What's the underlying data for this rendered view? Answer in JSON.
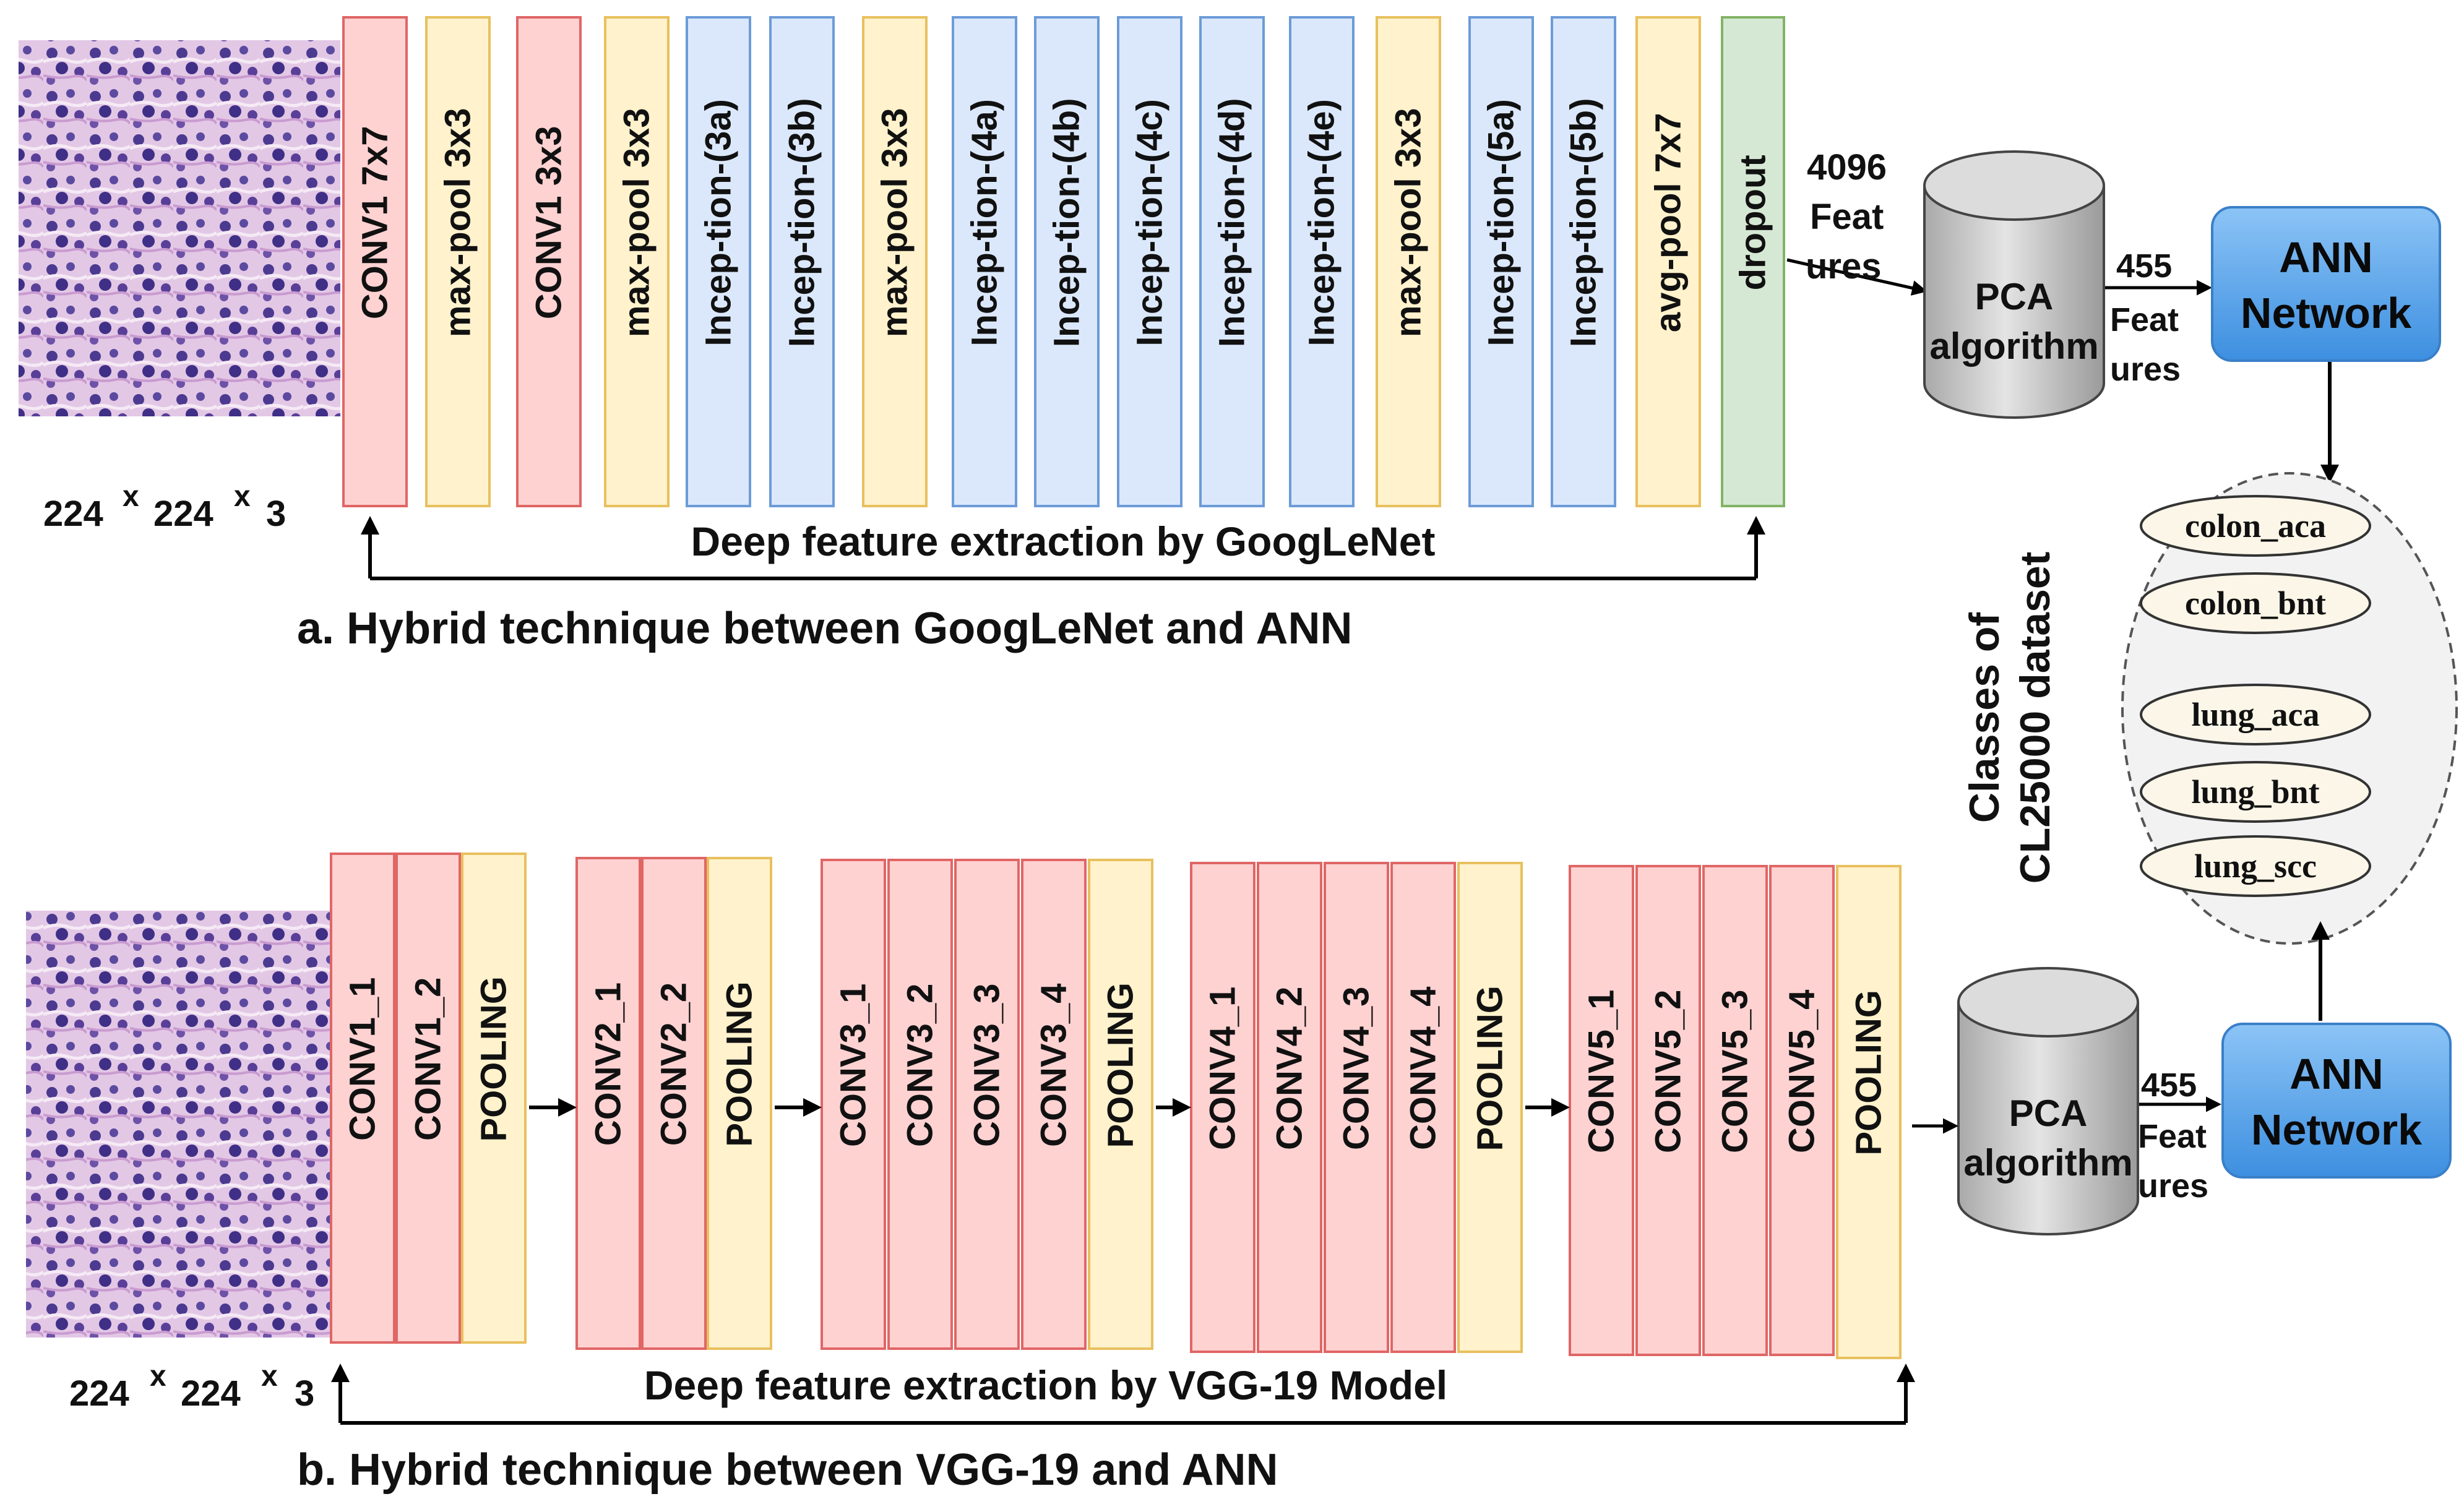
{
  "colors": {
    "conv": "#ffd2d2",
    "conv_stroke": "#e06666",
    "pool": "#fff2cc",
    "pool_stroke": "#e8c05e",
    "inception": "#dbe8fb",
    "inception_stroke": "#6c9bd8",
    "dropout": "#d5e8d4",
    "dropout_stroke": "#82b366",
    "ann": "#5aa5ef",
    "pca": "#cfcfcf",
    "cluster_fill": "#f0f0f0",
    "class_fill": "#fbf6e8",
    "histo_bg": "#e9d4ea",
    "histo_cell": "#4a3a8e"
  },
  "panel_a": {
    "input_size": {
      "n1": "224",
      "x1": "x",
      "n2": "224",
      "x2": "x",
      "n3": "3"
    },
    "layers": [
      {
        "label": "CONV1 7x7",
        "kind": "conv"
      },
      {
        "label": "max-pool 3x3",
        "kind": "pool"
      },
      {
        "label": "CONV1 3x3",
        "kind": "conv"
      },
      {
        "label": "max-pool 3x3",
        "kind": "pool"
      },
      {
        "label": "Incep-tion-(3a)",
        "kind": "inception"
      },
      {
        "label": "Incep-tion-(3b)",
        "kind": "inception"
      },
      {
        "label": "max-pool 3x3",
        "kind": "pool"
      },
      {
        "label": "Incep-tion-(4a)",
        "kind": "inception"
      },
      {
        "label": "Incep-tion-(4b)",
        "kind": "inception"
      },
      {
        "label": "Incep-tion-(4c)",
        "kind": "inception"
      },
      {
        "label": "Incep-tion-(4d)",
        "kind": "inception"
      },
      {
        "label": "Incep-tion-(4e)",
        "kind": "inception"
      },
      {
        "label": "max-pool 3x3",
        "kind": "pool"
      },
      {
        "label": "Incep-tion-(5a)",
        "kind": "inception"
      },
      {
        "label": "Incep-tion-(5b)",
        "kind": "inception"
      },
      {
        "label": "avg-pool 7x7",
        "kind": "pool"
      },
      {
        "label": "dropout",
        "kind": "dropout"
      }
    ],
    "features_label": [
      "4096",
      "Feat",
      "ures"
    ],
    "pca_label": [
      "PCA",
      "algorithm"
    ],
    "reduced_label": [
      "455",
      "Feat",
      "ures"
    ],
    "ann_label": [
      "ANN",
      "Network"
    ],
    "extraction_caption": "Deep feature extraction by GoogLeNet",
    "caption": "a. Hybrid technique between GoogLeNet and ANN"
  },
  "panel_b": {
    "input_size": {
      "n1": "224",
      "x1": "x",
      "n2": "224",
      "x2": "x",
      "n3": "3"
    },
    "groups": [
      {
        "layers": [
          {
            "label": "CONV1_1",
            "kind": "conv"
          },
          {
            "label": "CONV1_2",
            "kind": "conv"
          },
          {
            "label": "POOLING",
            "kind": "pool"
          }
        ]
      },
      {
        "layers": [
          {
            "label": "CONV2_1",
            "kind": "conv"
          },
          {
            "label": "CONV2_2",
            "kind": "conv"
          },
          {
            "label": "POOLING",
            "kind": "pool"
          }
        ]
      },
      {
        "layers": [
          {
            "label": "CONV3_1",
            "kind": "conv"
          },
          {
            "label": "CONV3_2",
            "kind": "conv"
          },
          {
            "label": "CONV3_3",
            "kind": "conv"
          },
          {
            "label": "CONV3_4",
            "kind": "conv"
          },
          {
            "label": "POOLING",
            "kind": "pool"
          }
        ]
      },
      {
        "layers": [
          {
            "label": "CONV4_1",
            "kind": "conv"
          },
          {
            "label": "CONV4_2",
            "kind": "conv"
          },
          {
            "label": "CONV4_3",
            "kind": "conv"
          },
          {
            "label": "CONV4_4",
            "kind": "conv"
          },
          {
            "label": "POOLING",
            "kind": "pool"
          }
        ]
      },
      {
        "layers": [
          {
            "label": "CONV5_1",
            "kind": "conv"
          },
          {
            "label": "CONV5_2",
            "kind": "conv"
          },
          {
            "label": "CONV5_3",
            "kind": "conv"
          },
          {
            "label": "CONV5_4",
            "kind": "conv"
          },
          {
            "label": "POOLING",
            "kind": "pool"
          }
        ]
      }
    ],
    "pca_label": [
      "PCA",
      "algorithm"
    ],
    "reduced_label": [
      "455",
      "Feat",
      "ures"
    ],
    "ann_label": [
      "ANN",
      "Network"
    ],
    "extraction_caption": "Deep feature extraction by VGG-19 Model",
    "caption": "b. Hybrid technique between VGG-19 and ANN"
  },
  "classes": {
    "title_line1": "Classes of",
    "title_line2": "CL25000 dataset",
    "items": [
      "colon_aca",
      "colon_bnt",
      "lung_aca",
      "lung_bnt",
      "lung_scc"
    ]
  }
}
